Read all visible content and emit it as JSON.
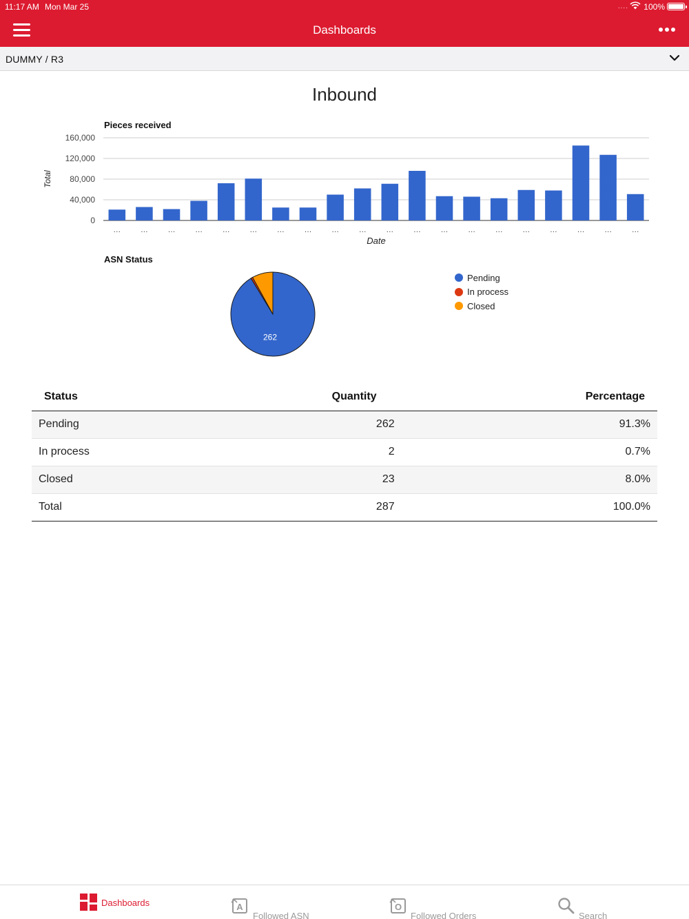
{
  "status_bar": {
    "time": "11:17 AM",
    "date": "Mon Mar 25",
    "signal": "....",
    "battery": "100%"
  },
  "header": {
    "title": "Dashboards",
    "menu_icon": "hamburger-menu-icon",
    "more_icon": "more-dots-icon"
  },
  "selector": {
    "label": "DUMMY / R3",
    "chevron_icon": "chevron-down-icon"
  },
  "page": {
    "title": "Inbound"
  },
  "colors": {
    "brand": "#dc1b30",
    "bar": "#3366cc",
    "pending": "#3366cc",
    "in_process": "#dc3912",
    "closed": "#ff9900"
  },
  "chart_data": [
    {
      "type": "bar",
      "title": "Pieces received",
      "xlabel": "Date",
      "ylabel": "Total",
      "ylim": [
        0,
        160000
      ],
      "yticks": [
        "0",
        "40,000",
        "80,000",
        "120,000",
        "160,000"
      ],
      "categories": [
        "…",
        "…",
        "…",
        "…",
        "…",
        "…",
        "…",
        "…",
        "…",
        "…",
        "…",
        "…",
        "…",
        "…",
        "…",
        "…",
        "…",
        "…",
        "…",
        "…"
      ],
      "values": [
        21000,
        26000,
        22000,
        38000,
        72000,
        81000,
        25000,
        25000,
        50000,
        62000,
        71000,
        96000,
        47000,
        46000,
        43000,
        59000,
        58000,
        145000,
        127000,
        51000
      ],
      "grid": true,
      "legend": "none"
    },
    {
      "type": "pie",
      "title": "ASN Status",
      "labels": [
        "Pending",
        "In process",
        "Closed"
      ],
      "values": [
        262,
        2,
        23
      ],
      "slice_labels": [
        "262",
        "",
        ""
      ],
      "legend": "right"
    }
  ],
  "table": {
    "headers": [
      "Status",
      "Quantity",
      "Percentage"
    ],
    "rows": [
      [
        "Pending",
        "262",
        "91.3%"
      ],
      [
        "In process",
        "2",
        "0.7%"
      ],
      [
        "Closed",
        "23",
        "8.0%"
      ],
      [
        "Total",
        "287",
        "100.0%"
      ]
    ]
  },
  "tabs": [
    {
      "label": "Dashboards",
      "icon": "dashboard-icon",
      "active": true
    },
    {
      "label": "Followed ASN",
      "icon": "followed-asn-icon",
      "active": false
    },
    {
      "label": "Followed Orders",
      "icon": "followed-orders-icon",
      "active": false
    },
    {
      "label": "Search",
      "icon": "search-icon",
      "active": false
    }
  ]
}
